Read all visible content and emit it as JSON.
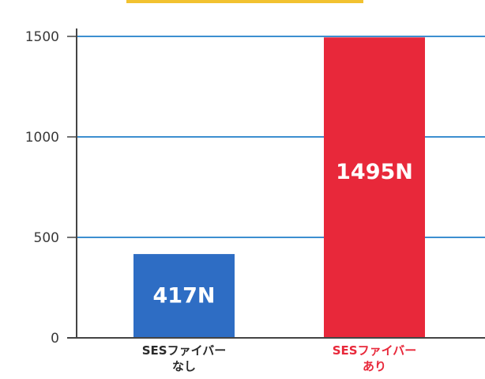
{
  "chart_data": {
    "type": "bar",
    "categories": [
      {
        "line1": "SESファイバー",
        "line2": "なし"
      },
      {
        "line1": "SESファイバー",
        "line2": "あり"
      }
    ],
    "values": [
      417,
      1495
    ],
    "data_labels": [
      "417N",
      "1495N"
    ],
    "bar_colors": [
      "#2e6dc4",
      "#e8283a"
    ],
    "category_label_colors": [
      "#2a2a2a",
      "#e8283a"
    ],
    "ylim": [
      0,
      1500
    ],
    "yticks": [
      0,
      500,
      1000,
      1500
    ],
    "ytick_labels": [
      "0",
      "500",
      "1000",
      "1500"
    ],
    "gridline_color": "#3d8fd0",
    "grid": true
  }
}
